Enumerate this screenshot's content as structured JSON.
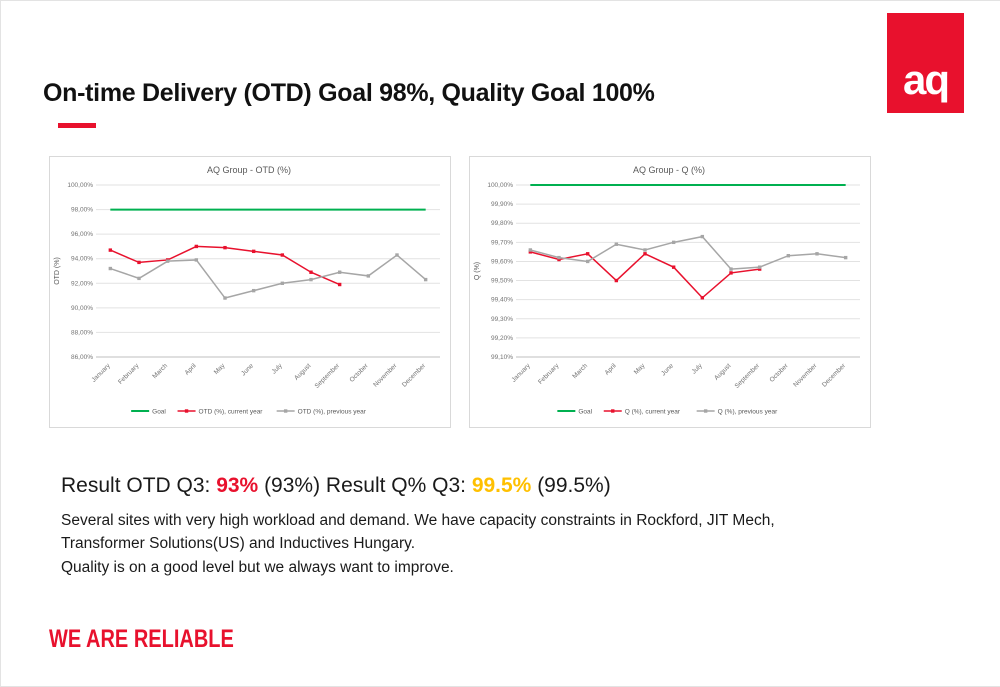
{
  "slide": {
    "title": "On-time Delivery (OTD) Goal 98%, Quality Goal 100%",
    "footer_text": "WE ARE RELIABLE",
    "logo_text": "aq"
  },
  "result": {
    "part1": "Result OTD Q3: ",
    "otd_value": "93%",
    "part2": " (93%) Result Q% Q3: ",
    "q_value": "99.5%",
    "part3": " (99.5%)"
  },
  "commentary": {
    "lines": [
      "Several sites with very high workload and demand. We have capacity constraints in Rockford, JIT Mech,",
      "Transformer Solutions(US) and Inductives Hungary.",
      "Quality is on a good level but we always want to improve."
    ]
  },
  "colors": {
    "brand_red": "#e8112d",
    "goal_green": "#00b050",
    "previous_gray": "#a6a6a6",
    "result_orange": "#ffc000"
  },
  "chart_data": [
    {
      "type": "line",
      "title": "AQ Group - OTD (%)",
      "xlabel": "",
      "ylabel": "OTD (%)",
      "ylim": [
        86,
        100
      ],
      "ytick_step": 2,
      "grid": true,
      "legend_position": "bottom",
      "categories": [
        "January",
        "February",
        "March",
        "April",
        "May",
        "June",
        "July",
        "August",
        "September",
        "October",
        "November",
        "December"
      ],
      "series": [
        {
          "name": "Goal",
          "color": "#00b050",
          "width": 2,
          "markers": false,
          "values": [
            98,
            98,
            98,
            98,
            98,
            98,
            98,
            98,
            98,
            98,
            98,
            98
          ]
        },
        {
          "name": "OTD (%), current year",
          "color": "#e8112d",
          "width": 1.5,
          "markers": true,
          "values": [
            94.7,
            93.7,
            93.9,
            95.0,
            94.9,
            94.6,
            94.3,
            92.9,
            91.9
          ]
        },
        {
          "name": "OTD (%), previous year",
          "color": "#a6a6a6",
          "width": 1.5,
          "markers": true,
          "values": [
            93.2,
            92.4,
            93.8,
            93.9,
            90.8,
            91.4,
            92.0,
            92.3,
            92.9,
            92.6,
            94.3,
            92.3
          ]
        }
      ]
    },
    {
      "type": "line",
      "title": "AQ Group - Q (%)",
      "xlabel": "",
      "ylabel": "Q (%)",
      "ylim": [
        99.1,
        100
      ],
      "ytick_step": 0.1,
      "grid": true,
      "legend_position": "bottom",
      "categories": [
        "January",
        "February",
        "March",
        "April",
        "May",
        "June",
        "July",
        "August",
        "September",
        "October",
        "November",
        "December"
      ],
      "series": [
        {
          "name": "Goal",
          "color": "#00b050",
          "width": 2,
          "markers": false,
          "values": [
            100,
            100,
            100,
            100,
            100,
            100,
            100,
            100,
            100,
            100,
            100,
            100
          ]
        },
        {
          "name": "Q (%), current year",
          "color": "#e8112d",
          "width": 1.5,
          "markers": true,
          "values": [
            99.65,
            99.61,
            99.64,
            99.5,
            99.64,
            99.57,
            99.41,
            99.54,
            99.56
          ]
        },
        {
          "name": "Q (%), previous year",
          "color": "#a6a6a6",
          "width": 1.5,
          "markers": true,
          "values": [
            99.66,
            99.62,
            99.6,
            99.69,
            99.66,
            99.7,
            99.73,
            99.56,
            99.57,
            99.63,
            99.64,
            99.62
          ]
        }
      ]
    }
  ]
}
